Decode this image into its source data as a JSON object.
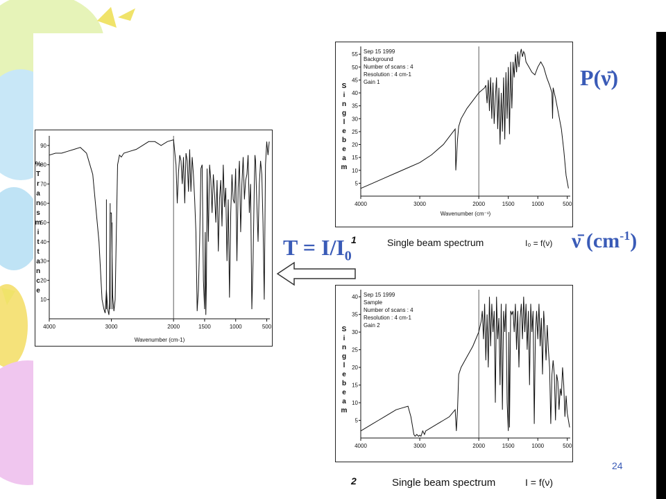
{
  "slide": {
    "page_number": "24",
    "colors": {
      "accent": "#3a5bb7",
      "frame": "#000000"
    }
  },
  "labels": {
    "p_nu": "P(ν̄)",
    "nu_base": "ν̄",
    "nu_unit": "(cm",
    "nu_exp": "-1",
    "nu_close": ")",
    "t_main": "T = I/I",
    "t_sub": "0",
    "caption1_num": "1",
    "caption1_text": "Single beam spectrum",
    "caption1_formula": "I₀ = f(ν)",
    "caption2_num": "2",
    "caption2_text": "Single beam spectrum",
    "caption2_formula": "I = f(ν)"
  },
  "chart_data": [
    {
      "id": "transmittance",
      "type": "line",
      "ylabel": "% T r a n s m i t t a n c e",
      "xlabel": "Wavenumber (cm-1)",
      "xlim": [
        4000,
        450
      ],
      "ylim": [
        0,
        95
      ],
      "x_ticks": [
        4000,
        3000,
        2000,
        1500,
        1000,
        500
      ],
      "x_tick_labels": [
        "4000",
        "3000",
        "2000",
        "1500",
        "1000",
        "500"
      ],
      "y_ticks": [
        10,
        20,
        30,
        40,
        50,
        60,
        70,
        80,
        90
      ],
      "y_tick_labels": [
        "10",
        "20",
        "30",
        "40",
        "50",
        "60",
        "70",
        "80",
        "90"
      ],
      "divider_x": 2000,
      "x": [
        4000,
        3900,
        3800,
        3700,
        3600,
        3500,
        3400,
        3300,
        3200,
        3150,
        3120,
        3100,
        3080,
        3060,
        3040,
        3030,
        3020,
        3000,
        2980,
        2960,
        2940,
        2920,
        2900,
        2870,
        2840,
        2800,
        2700,
        2600,
        2500,
        2400,
        2300,
        2200,
        2100,
        2000,
        1960,
        1940,
        1920,
        1900,
        1880,
        1860,
        1840,
        1820,
        1800,
        1780,
        1760,
        1740,
        1720,
        1700,
        1680,
        1660,
        1640,
        1620,
        1600,
        1580,
        1560,
        1540,
        1520,
        1500,
        1490,
        1480,
        1470,
        1460,
        1450,
        1440,
        1420,
        1400,
        1380,
        1360,
        1340,
        1320,
        1300,
        1280,
        1260,
        1240,
        1220,
        1200,
        1180,
        1160,
        1140,
        1120,
        1100,
        1080,
        1060,
        1040,
        1020,
        1000,
        980,
        960,
        940,
        920,
        900,
        880,
        860,
        840,
        820,
        800,
        780,
        760,
        740,
        720,
        700,
        690,
        680,
        660,
        640,
        620,
        600,
        580,
        560,
        540,
        520,
        500,
        480,
        460
      ],
      "y": [
        85,
        86,
        86,
        87,
        88,
        89,
        86,
        75,
        40,
        10,
        5,
        3,
        15,
        5,
        2,
        8,
        55,
        55,
        12,
        4,
        10,
        45,
        80,
        85,
        84,
        86,
        87,
        88,
        90,
        92,
        92,
        90,
        92,
        93,
        80,
        60,
        76,
        85,
        82,
        70,
        84,
        60,
        86,
        82,
        66,
        88,
        66,
        84,
        75,
        62,
        45,
        4,
        15,
        40,
        78,
        80,
        20,
        5,
        45,
        2,
        20,
        78,
        60,
        40,
        80,
        72,
        55,
        75,
        65,
        50,
        72,
        35,
        62,
        72,
        48,
        80,
        58,
        68,
        30,
        62,
        11,
        55,
        75,
        62,
        60,
        78,
        30,
        68,
        82,
        45,
        70,
        84,
        62,
        72,
        75,
        85,
        55,
        70,
        5,
        30,
        70,
        85,
        82,
        60,
        40,
        70,
        82,
        75,
        50,
        10,
        80,
        92,
        85,
        92
      ],
      "spikes": [
        {
          "x": 3080,
          "y": 62
        },
        {
          "x": 3020,
          "y": 60
        },
        {
          "x": 2990,
          "y": 50
        }
      ]
    },
    {
      "id": "background",
      "type": "line",
      "ylabel": "S i n g l e b e a m",
      "xlabel": "Wavenumber (cm⁻¹)",
      "meta": [
        "Sep 15 1999",
        "Background",
        "Number of scans : 4",
        "Resolution : 4 cm-1",
        "Gain 1"
      ],
      "xlim": [
        4000,
        450
      ],
      "ylim": [
        0,
        58
      ],
      "x_ticks": [
        4000,
        3000,
        2000,
        1500,
        1000,
        500
      ],
      "x_tick_labels": [
        "4000",
        "3000",
        "2000",
        "1500",
        "1000",
        "500"
      ],
      "y_ticks": [
        5,
        10,
        15,
        20,
        25,
        30,
        35,
        40,
        45,
        50,
        55
      ],
      "y_tick_labels": [
        "5",
        "10",
        "15",
        "20",
        "25",
        "30",
        "35",
        "40",
        "45",
        "50",
        "55"
      ],
      "divider_x": 2000,
      "x": [
        4000,
        3800,
        3600,
        3400,
        3200,
        3000,
        2800,
        2600,
        2500,
        2400,
        2390,
        2360,
        2340,
        2300,
        2200,
        2100,
        2000,
        1950,
        1900,
        1880,
        1860,
        1840,
        1820,
        1800,
        1780,
        1760,
        1740,
        1720,
        1700,
        1680,
        1660,
        1640,
        1620,
        1600,
        1580,
        1560,
        1540,
        1520,
        1500,
        1480,
        1460,
        1440,
        1420,
        1400,
        1380,
        1360,
        1340,
        1320,
        1300,
        1280,
        1260,
        1240,
        1220,
        1200,
        1150,
        1100,
        1050,
        1000,
        950,
        900,
        850,
        800,
        760,
        750,
        740,
        700,
        650,
        600,
        560,
        520,
        480
      ],
      "y": [
        3,
        5,
        7,
        9,
        11,
        13,
        16,
        20,
        23,
        26,
        10,
        22,
        27,
        30,
        34,
        37,
        40,
        41,
        42,
        43,
        36,
        45,
        33,
        46,
        30,
        44,
        28,
        38,
        46,
        26,
        42,
        20,
        40,
        25,
        46,
        22,
        48,
        30,
        50,
        24,
        52,
        34,
        52,
        46,
        55,
        48,
        56,
        50,
        55,
        57,
        54,
        56,
        55,
        52,
        50,
        48,
        47,
        50,
        52,
        50,
        46,
        43,
        40,
        30,
        42,
        38,
        32,
        26,
        18,
        8,
        3
      ]
    },
    {
      "id": "sample",
      "type": "line",
      "ylabel": "S i n g l e b e a m",
      "meta": [
        "Sep 15 1999",
        "Sample",
        "Number of scans : 4",
        "Resolution : 4 cm-1",
        "Gain 2"
      ],
      "xlim": [
        4000,
        450
      ],
      "ylim": [
        0,
        42
      ],
      "x_ticks": [
        4000,
        3000,
        2000,
        1500,
        1000,
        500
      ],
      "x_tick_labels": [
        "4000",
        "3000",
        "2000",
        "1500",
        "1000",
        "500"
      ],
      "y_ticks": [
        5,
        10,
        15,
        20,
        25,
        30,
        35,
        40
      ],
      "y_tick_labels": [
        "5",
        "10",
        "15",
        "20",
        "25",
        "30",
        "35",
        "40"
      ],
      "divider_x": 2000,
      "x": [
        4000,
        3900,
        3800,
        3700,
        3600,
        3500,
        3400,
        3300,
        3200,
        3150,
        3100,
        3080,
        3050,
        3020,
        3000,
        2980,
        2950,
        2920,
        2900,
        2800,
        2700,
        2600,
        2500,
        2400,
        2380,
        2360,
        2340,
        2300,
        2200,
        2100,
        2000,
        1960,
        1940,
        1920,
        1900,
        1880,
        1860,
        1840,
        1820,
        1800,
        1780,
        1760,
        1740,
        1720,
        1700,
        1680,
        1660,
        1640,
        1620,
        1600,
        1580,
        1560,
        1540,
        1520,
        1500,
        1490,
        1480,
        1460,
        1440,
        1420,
        1400,
        1380,
        1360,
        1340,
        1320,
        1300,
        1280,
        1260,
        1240,
        1220,
        1200,
        1180,
        1160,
        1140,
        1120,
        1100,
        1080,
        1060,
        1040,
        1020,
        1000,
        980,
        960,
        940,
        920,
        900,
        880,
        860,
        840,
        820,
        800,
        780,
        760,
        740,
        720,
        700,
        680,
        660,
        640,
        620,
        600,
        580,
        560,
        540,
        520,
        500,
        480,
        460
      ],
      "y": [
        2,
        3,
        4,
        5,
        6,
        7,
        8,
        8.5,
        9,
        6,
        1,
        0.5,
        1,
        0.5,
        0.8,
        0.5,
        2,
        1,
        2,
        3,
        4,
        5,
        6,
        8,
        2,
        8,
        18,
        20,
        23,
        26,
        30,
        33,
        36,
        28,
        38,
        22,
        35,
        20,
        40,
        26,
        38,
        30,
        36,
        10,
        40,
        28,
        34,
        15,
        38,
        8,
        36,
        30,
        38,
        10,
        2,
        30,
        3,
        36,
        35,
        36,
        30,
        38,
        25,
        36,
        20,
        34,
        38,
        28,
        40,
        30,
        38,
        25,
        36,
        15,
        38,
        30,
        36,
        4,
        30,
        36,
        28,
        38,
        26,
        34,
        18,
        36,
        30,
        22,
        32,
        25,
        20,
        4,
        18,
        22,
        18,
        5,
        18,
        16,
        8,
        14,
        12,
        20,
        15,
        6,
        12,
        7,
        5,
        3
      ]
    }
  ]
}
